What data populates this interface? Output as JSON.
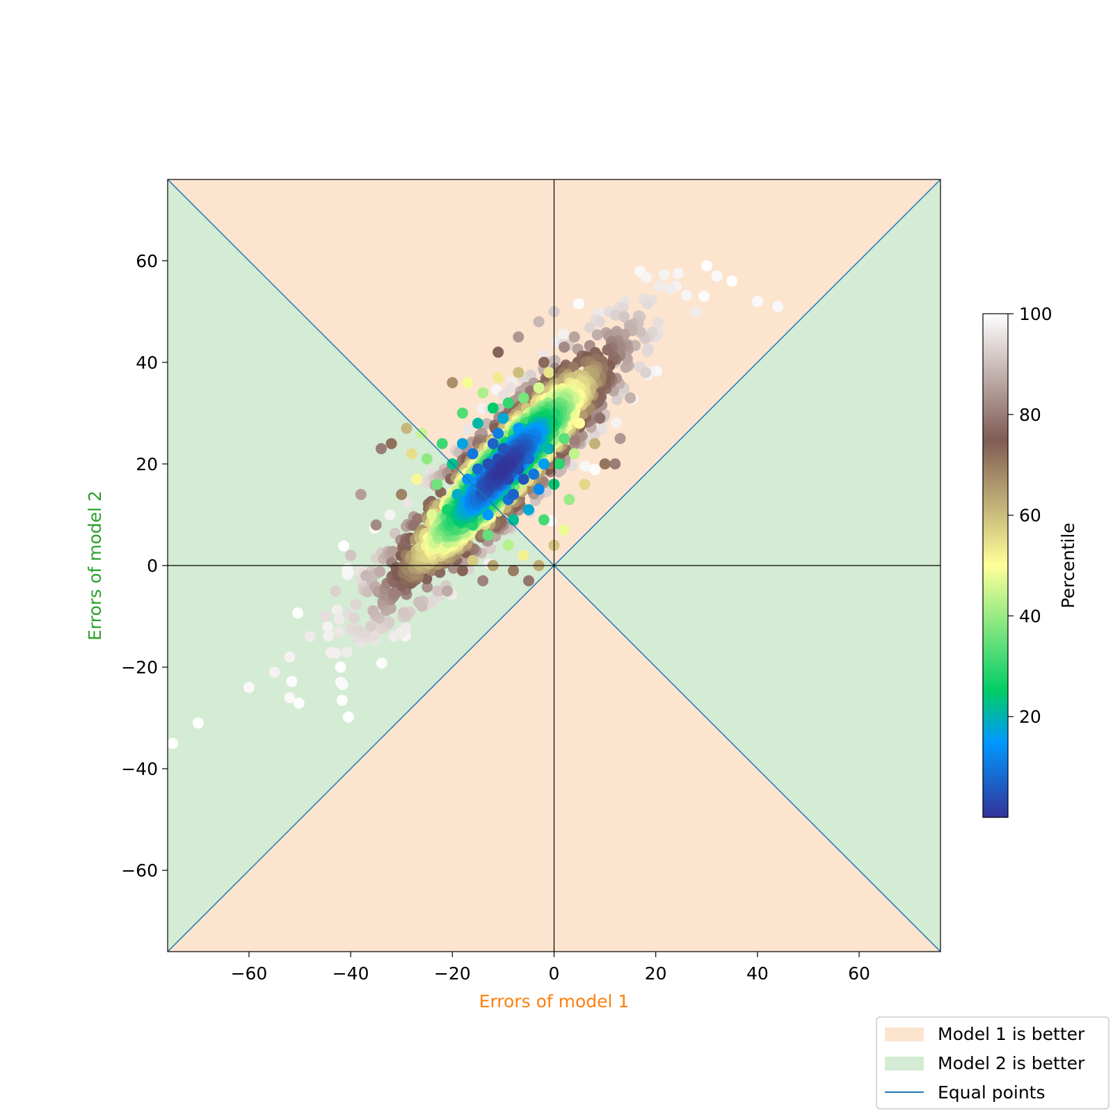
{
  "chart_data": {
    "type": "scatter",
    "xlabel": "Errors of model 1",
    "ylabel": "Errors of model 2",
    "xlabel_color": "#ff7f0e",
    "ylabel_color": "#2ca02c",
    "xlim": [
      -76,
      76
    ],
    "ylim": [
      -76,
      76
    ],
    "xticks": [
      -60,
      -40,
      -20,
      0,
      20,
      40,
      60
    ],
    "yticks": [
      -60,
      -40,
      -20,
      0,
      20,
      40,
      60
    ],
    "xtick_labels": [
      "−60",
      "−40",
      "−20",
      "0",
      "20",
      "40",
      "60"
    ],
    "ytick_labels": [
      "−60",
      "−40",
      "−20",
      "0",
      "20",
      "40",
      "60"
    ],
    "grid": false,
    "regions": [
      {
        "name": "Model 1 is better",
        "color": "#fde4cf",
        "condition": "|y| > |x|"
      },
      {
        "name": "Model 2 is better",
        "color": "#d4ebd4",
        "condition": "|y| < |x|"
      }
    ],
    "reference_lines": {
      "name": "Equal points",
      "color": "#1f77b4",
      "lines": [
        "y = x",
        "y = -x"
      ]
    },
    "axes_lines": {
      "color": "#000000",
      "at": "x = 0, y = 0"
    },
    "scatter": {
      "color_by": "Percentile",
      "center": [
        -10,
        19
      ],
      "points": [
        [
          -10,
          19,
          1
        ],
        [
          -8,
          21,
          2
        ],
        [
          -12,
          18,
          2
        ],
        [
          -9,
          17,
          3
        ],
        [
          -11,
          21,
          3
        ],
        [
          -7,
          19,
          4
        ],
        [
          -13,
          20,
          4
        ],
        [
          -10,
          23,
          5
        ],
        [
          -6,
          17,
          5
        ],
        [
          -14,
          16,
          6
        ],
        [
          -8,
          14,
          7
        ],
        [
          -12,
          24,
          7
        ],
        [
          -5,
          21,
          8
        ],
        [
          -15,
          19,
          8
        ],
        [
          -9,
          13,
          9
        ],
        [
          -4,
          18,
          10
        ],
        [
          -16,
          22,
          10
        ],
        [
          -11,
          26,
          11
        ],
        [
          -6,
          24,
          12
        ],
        [
          -14,
          13,
          12
        ],
        [
          -3,
          15,
          13
        ],
        [
          -17,
          17,
          14
        ],
        [
          -7,
          27,
          15
        ],
        [
          -13,
          10,
          15
        ],
        [
          -2,
          20,
          16
        ],
        [
          -18,
          24,
          17
        ],
        [
          -10,
          29,
          18
        ],
        [
          -5,
          11,
          18
        ],
        [
          -19,
          14,
          19
        ],
        [
          -1,
          23,
          20
        ],
        [
          -15,
          28,
          21
        ],
        [
          -8,
          9,
          22
        ],
        [
          -20,
          20,
          23
        ],
        [
          0,
          16,
          24
        ],
        [
          -12,
          31,
          25
        ],
        [
          -4,
          28,
          26
        ],
        [
          -21,
          11,
          27
        ],
        [
          -16,
          8,
          28
        ],
        [
          1,
          20,
          29
        ],
        [
          -9,
          32,
          30
        ],
        [
          -22,
          24,
          31
        ],
        [
          -2,
          9,
          32
        ],
        [
          -18,
          30,
          33
        ],
        [
          2,
          25,
          34
        ],
        [
          -13,
          6,
          35
        ],
        [
          -23,
          16,
          36
        ],
        [
          -6,
          33,
          37
        ],
        [
          -1,
          30,
          38
        ],
        [
          -25,
          21,
          39
        ],
        [
          3,
          13,
          40
        ],
        [
          -20,
          6,
          41
        ],
        [
          -14,
          34,
          42
        ],
        [
          -9,
          4,
          43
        ],
        [
          4,
          22,
          44
        ],
        [
          -26,
          26,
          45
        ],
        [
          -3,
          35,
          46
        ],
        [
          -24,
          10,
          47
        ],
        [
          2,
          7,
          48
        ],
        [
          -17,
          36,
          49
        ],
        [
          5,
          28,
          50
        ],
        [
          -27,
          17,
          51
        ],
        [
          -6,
          2,
          52
        ],
        [
          -11,
          37,
          53
        ],
        [
          -1,
          38,
          54
        ],
        [
          -28,
          22,
          55
        ],
        [
          6,
          16,
          56
        ],
        [
          -22,
          4,
          57
        ],
        [
          -16,
          1,
          58
        ],
        [
          0,
          4,
          59
        ],
        [
          -7,
          38,
          60
        ],
        [
          -29,
          27,
          61
        ],
        [
          8,
          24,
          62
        ],
        [
          -3,
          0,
          63
        ],
        [
          -12,
          0,
          64
        ],
        [
          3,
          36,
          65
        ],
        [
          -26,
          7,
          66
        ],
        [
          -20,
          36,
          67
        ],
        [
          7,
          31,
          68
        ],
        [
          -30,
          14,
          69
        ],
        [
          -8,
          -1,
          70
        ],
        [
          10,
          20,
          71
        ],
        [
          -32,
          24,
          72
        ],
        [
          -2,
          40,
          73
        ],
        [
          -18,
          -1,
          74
        ],
        [
          5,
          37,
          75
        ],
        [
          -11,
          42,
          76
        ],
        [
          -28,
          3,
          77
        ],
        [
          9,
          29,
          78
        ],
        [
          -5,
          -3,
          79
        ],
        [
          12,
          20,
          80
        ],
        [
          -34,
          23,
          80
        ],
        [
          -14,
          -3,
          81
        ],
        [
          2,
          43,
          82
        ],
        [
          -35,
          8,
          82
        ],
        [
          -24,
          -1,
          83
        ],
        [
          -7,
          45,
          84
        ],
        [
          13,
          25,
          84
        ],
        [
          -38,
          14,
          85
        ],
        [
          -30,
          -2,
          86
        ],
        [
          4,
          45,
          86
        ],
        [
          -21,
          -5,
          87
        ],
        [
          10,
          35,
          87
        ],
        [
          -33,
          -5,
          88
        ],
        [
          15,
          33,
          88
        ],
        [
          -3,
          48,
          89
        ],
        [
          -37,
          -2,
          89
        ],
        [
          -26,
          -8,
          90
        ],
        [
          7,
          42,
          90
        ],
        [
          -40,
          2,
          91
        ],
        [
          12,
          40,
          91
        ],
        [
          -29,
          -10,
          92
        ],
        [
          0,
          50,
          92
        ],
        [
          -43,
          -5,
          93
        ],
        [
          18,
          38,
          93
        ],
        [
          -34,
          -12,
          94
        ],
        [
          9,
          48,
          94
        ],
        [
          -45,
          -10,
          95
        ],
        [
          20,
          45,
          95
        ],
        [
          -38,
          -15,
          96
        ],
        [
          14,
          52,
          96
        ],
        [
          -48,
          -14,
          97
        ],
        [
          28,
          50,
          97
        ],
        [
          -52,
          -18,
          98
        ],
        [
          24,
          55,
          98
        ],
        [
          -55,
          -21,
          98
        ],
        [
          32,
          57,
          99
        ],
        [
          -60,
          -24,
          99
        ],
        [
          40,
          52,
          99
        ],
        [
          -52,
          -26,
          99
        ],
        [
          44,
          51,
          99
        ],
        [
          -70,
          -31,
          100
        ],
        [
          -75,
          -35,
          100
        ],
        [
          30,
          59,
          100
        ],
        [
          -42,
          -20,
          100
        ],
        [
          35,
          56,
          100
        ]
      ]
    },
    "colorbar": {
      "label": "Percentile",
      "range": [
        0,
        100
      ],
      "ticks": [
        20,
        40,
        60,
        80,
        100
      ],
      "tick_labels": [
        "20",
        "40",
        "60",
        "80",
        "100"
      ],
      "colormap": "terrain_r",
      "stops": [
        {
          "v": 0,
          "color": "#333399"
        },
        {
          "v": 15,
          "color": "#0099ff"
        },
        {
          "v": 25,
          "color": "#00cc66"
        },
        {
          "v": 50,
          "color": "#ffff99"
        },
        {
          "v": 75,
          "color": "#805c54"
        },
        {
          "v": 100,
          "color": "#ffffff"
        }
      ]
    },
    "legend": {
      "placement": "bottom-right",
      "items": [
        {
          "label": "Model 1 is better",
          "kind": "patch",
          "color": "#fde4cf"
        },
        {
          "label": "Model 2 is better",
          "kind": "patch",
          "color": "#d4ebd4"
        },
        {
          "label": "Equal points",
          "kind": "line",
          "color": "#1f77b4"
        }
      ]
    }
  }
}
